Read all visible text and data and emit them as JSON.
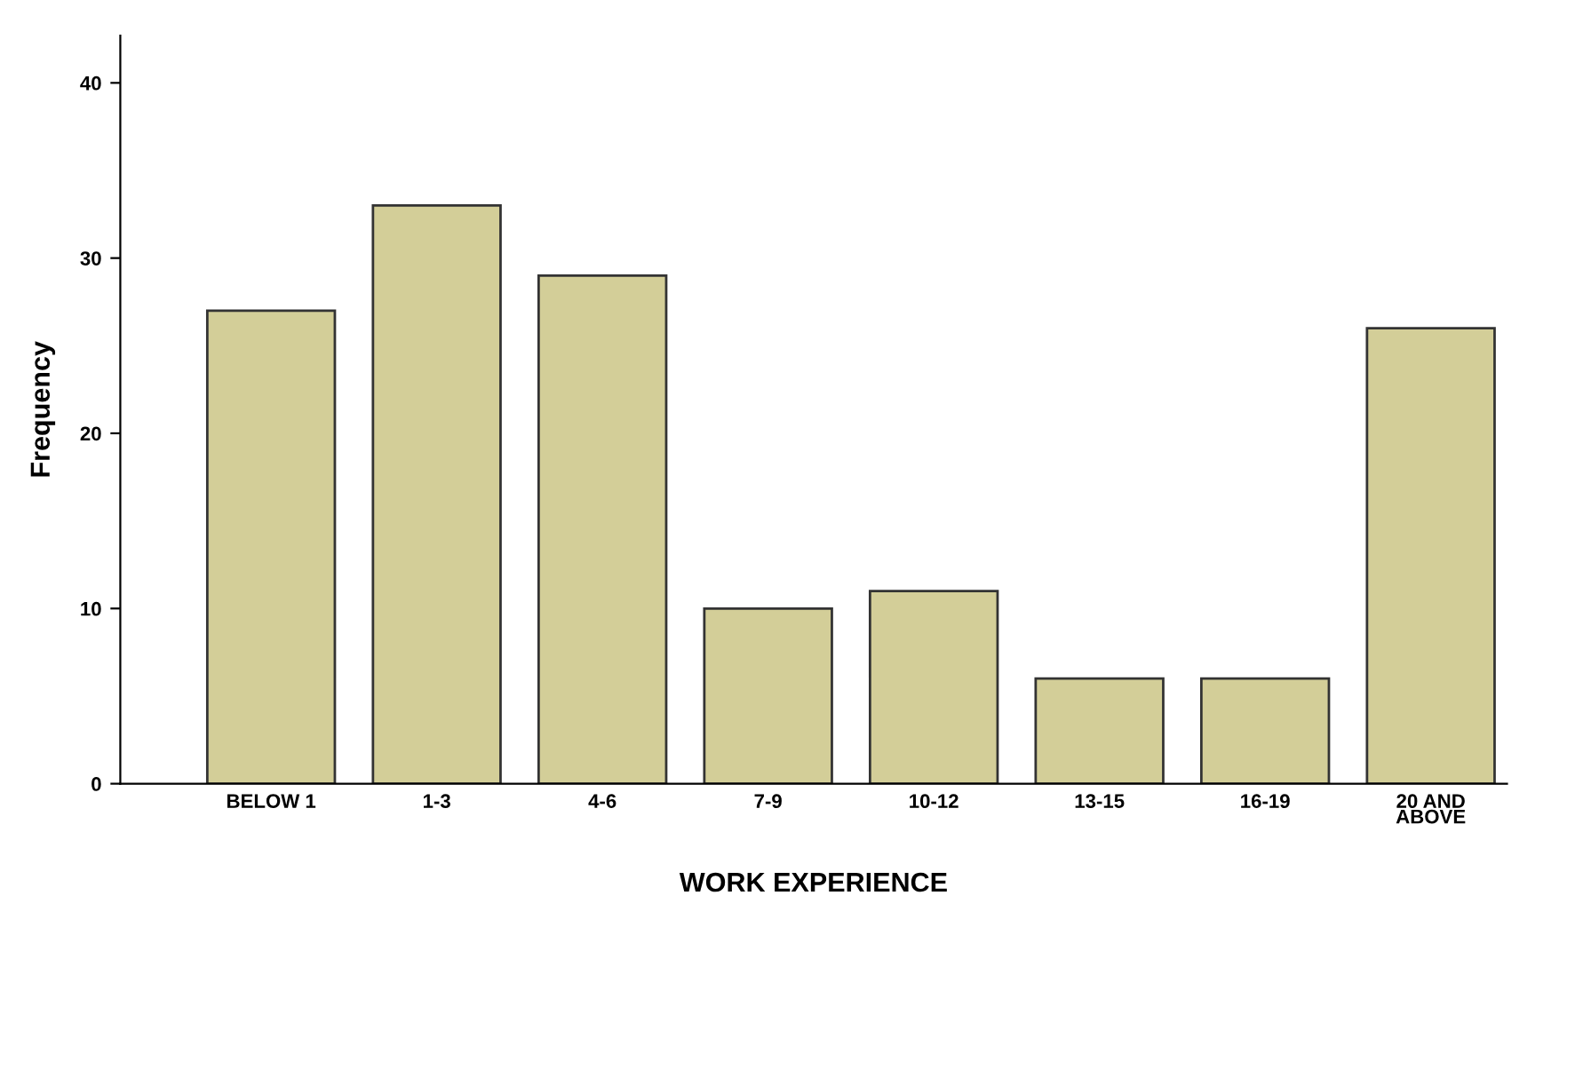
{
  "chart_data": {
    "type": "bar",
    "xlabel": "WORK EXPERIENCE",
    "ylabel": "Frequency",
    "categories": [
      "BELOW 1",
      "1-3",
      "4-6",
      "7-9",
      "10-12",
      "13-15",
      "16-19",
      "20 AND\nABOVE"
    ],
    "values": [
      27,
      33,
      29,
      10,
      11,
      6,
      6,
      26
    ],
    "color": "#d3ce98",
    "ylim": [
      0,
      42.7
    ],
    "yticks": [
      0,
      10,
      20,
      30,
      40
    ],
    "grid": false,
    "legend": false
  }
}
